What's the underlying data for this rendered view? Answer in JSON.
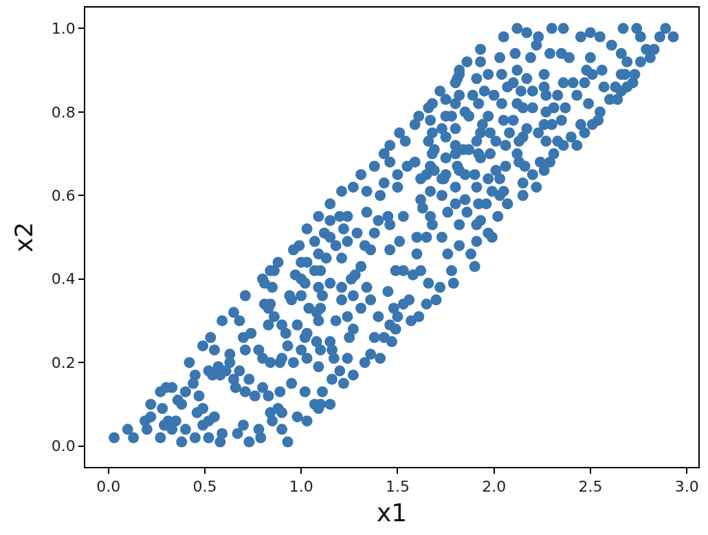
{
  "chart_data": {
    "type": "scatter",
    "xlabel": "x1",
    "ylabel": "x2",
    "color": "#3a76af",
    "marker": "circle",
    "xlim": [
      -0.12,
      3.06
    ],
    "ylim": [
      -0.05,
      1.05
    ],
    "xticks": [
      {
        "value": 0,
        "label": "0.0"
      },
      {
        "value": 0.5,
        "label": "0.5"
      },
      {
        "value": 1,
        "label": "1.0"
      },
      {
        "value": 1.5,
        "label": "1.5"
      },
      {
        "value": 2,
        "label": "2.0"
      },
      {
        "value": 2.5,
        "label": "2.5"
      },
      {
        "value": 3,
        "label": "3.0"
      }
    ],
    "yticks": [
      {
        "value": 0,
        "label": "0.0"
      },
      {
        "value": 0.2,
        "label": "0.2"
      },
      {
        "value": 0.4,
        "label": "0.4"
      },
      {
        "value": 0.6,
        "label": "0.6"
      },
      {
        "value": 0.8,
        "label": "0.8"
      },
      {
        "value": 1,
        "label": "1.0"
      }
    ],
    "x": [
      0.03,
      0.1,
      0.13,
      0.19,
      0.22,
      0.2,
      0.22,
      0.27,
      0.33,
      0.4,
      0.38,
      0.28,
      0.31,
      0.27,
      0.35,
      0.38,
      0.4,
      0.42,
      0.45,
      0.44,
      0.47,
      0.46,
      0.45,
      0.49,
      0.52,
      0.52,
      0.58,
      0.59,
      0.54,
      0.49,
      0.53,
      0.59,
      0.65,
      0.71,
      0.63,
      0.55,
      0.61,
      0.66,
      0.71,
      0.7,
      0.78,
      0.8,
      0.73,
      0.8,
      0.76,
      0.7,
      0.67,
      0.73,
      0.79,
      0.78,
      0.85,
      0.88,
      0.83,
      0.89,
      0.93,
      0.9,
      0.98,
      1.03,
      0.95,
      1.02,
      1.07,
      1.09,
      0.8,
      0.85,
      0.86,
      0.83,
      0.86,
      0.83,
      0.92,
      0.95,
      0.97,
      1.02,
      1.07,
      1.04,
      1.09,
      1.02,
      0.89,
      0.96,
      1.09,
      0.84,
      0.88,
      0.96,
      0.99,
      1.03,
      1.09,
      1.15,
      1.21,
      1.27,
      1.31,
      1.38,
      1.46,
      0.81,
      0.81,
      0.94,
      1.0,
      1.0,
      1.1,
      1.15,
      1.09,
      1.21,
      1.13,
      1.18,
      1.12,
      1.15,
      1.24,
      1.22,
      1.29,
      1.34,
      1.41,
      1.34,
      1.5,
      1.55,
      1.62,
      1.67,
      1.62,
      1.74,
      1.82,
      1.9,
      1.93,
      1.99,
      2.01,
      1.76,
      1.82,
      1.91,
      1.97,
      1.88,
      1.82,
      1.76,
      1.78,
      1.72,
      1.65,
      1.61,
      1.53,
      1.48,
      1.43,
      1.47,
      1.5,
      1.67,
      1.65,
      1.6,
      1.62,
      1.53,
      1.46,
      1.53,
      1.46,
      1.38,
      1.36,
      1.31,
      1.34,
      1.27,
      1.31,
      1.36,
      1.4,
      1.24,
      1.18,
      1.08,
      1.03,
      0.93,
      1.03,
      1.1,
      1.15,
      1.17,
      1.24,
      1.27,
      1.36,
      1.46,
      1.56,
      1.1,
      1.15,
      1.22,
      1.33,
      1.41,
      1.57,
      1.79,
      1.9,
      1.99,
      1.93,
      2.07,
      1.72,
      1.75,
      1.82,
      1.86,
      1.93,
      1.93,
      1.91,
      1.81,
      2.03,
      2.05,
      2.12,
      2.17,
      2.22,
      2.11,
      2.12,
      2.1,
      2.04,
      2.0,
      1.95,
      1.92,
      1.82,
      1.85,
      1.78,
      1.68,
      1.67,
      1.73,
      1.69,
      1.8,
      1.84,
      1.98,
      1.93,
      1.97,
      2.05,
      2.04,
      2.12,
      2.1,
      2.17,
      2.19,
      2.26,
      2.29,
      2.3,
      2.36,
      2.26,
      2.36,
      2.41,
      2.31,
      2.2,
      2.17,
      2.23,
      2.3,
      2.37,
      2.43,
      2.47,
      2.48,
      2.51,
      2.56,
      2.5,
      2.45,
      2.5,
      2.55,
      2.39,
      2.61,
      2.66,
      2.67,
      2.74,
      2.76,
      2.79,
      2.76,
      2.69,
      2.68,
      2.72,
      2.66,
      2.64,
      2.57,
      2.6,
      2.55,
      2.51,
      2.47,
      2.43,
      2.36,
      2.31,
      2.24,
      2.2,
      2.16,
      2.12,
      2.06,
      2.22,
      2.86,
      2.89,
      2.93,
      2.83,
      2.81,
      2.73,
      2.26,
      2.06,
      2.03,
      1.97,
      1.81,
      1.75,
      1.69,
      1.67,
      1.8,
      1.85,
      1.92,
      2.03,
      2.07,
      2.15,
      2.4,
      2.54,
      1.66,
      1.61,
      1.59,
      1.51,
      1.54,
      1.46,
      1.43,
      1.59,
      1.5,
      1.43,
      1.65,
      1.68,
      1.68,
      1.8,
      1.73,
      1.8,
      1.75,
      1.87,
      1.94,
      1.82,
      1.8,
      1.87,
      0.3,
      0.36,
      0.29,
      0.33,
      0.49,
      0.55,
      0.52,
      0.58,
      0.65,
      0.68,
      0.71,
      0.84,
      0.9,
      1.11,
      1.16,
      1.2,
      1.16,
      1.08,
      1.0,
      0.9,
      0.84,
      0.63,
      0.57,
      0.68,
      0.74,
      0.84,
      0.9,
      1.0,
      1.03,
      1.07,
      1.1,
      1.21,
      1.27,
      1.26,
      1.24,
      1.15,
      1.09,
      1.2,
      1.4,
      1.45,
      1.51,
      1.33,
      1.28,
      1.21,
      1.11,
      1.45,
      1.49,
      1.58,
      1.6,
      1.63,
      1.68,
      1.73,
      1.91,
      1.8,
      1.73,
      1.75,
      1.66,
      1.92,
      2.01,
      2.05,
      2.15,
      2.29,
      2.13,
      2.15,
      2.15,
      2.26,
      1.8,
      2.07,
      2.33,
      1.66,
      1.7,
      1.49,
      1.38,
      1.25,
      0.98,
      1.96,
      2.23,
      2.35,
      2.66,
      2.69,
      2.63,
      2.49,
      2.45,
      2.33,
      2.27,
      2.02,
      2.13,
      2.27,
      2.35,
      2.27,
      2.2,
      2.14,
      1.97,
      1.89,
      2.08,
      1.98,
      1.91,
      1.75,
      1.85,
      1.91,
      1.86
    ],
    "values": [
      0.02,
      0.04,
      0.02,
      0.06,
      0.07,
      0.04,
      0.1,
      0.13,
      0.14,
      0.13,
      0.1,
      0.09,
      0.06,
      0.02,
      0.06,
      0.01,
      0.04,
      0.2,
      0.17,
      0.15,
      0.12,
      0.08,
      0.02,
      0.09,
      0.06,
      0.02,
      0.01,
      0.03,
      0.17,
      0.24,
      0.26,
      0.3,
      0.32,
      0.36,
      0.22,
      0.23,
      0.18,
      0.14,
      0.23,
      0.26,
      0.23,
      0.21,
      0.16,
      0.14,
      0.12,
      0.05,
      0.03,
      0.01,
      0.02,
      0.04,
      0.06,
      0.09,
      0.12,
      0.13,
      0.01,
      0.04,
      0.07,
      0.06,
      0.15,
      0.13,
      0.1,
      0.09,
      0.4,
      0.38,
      0.42,
      0.33,
      0.31,
      0.29,
      0.27,
      0.35,
      0.41,
      0.39,
      0.42,
      0.33,
      0.3,
      0.26,
      0.2,
      0.2,
      0.19,
      0.42,
      0.44,
      0.47,
      0.48,
      0.52,
      0.55,
      0.58,
      0.61,
      0.62,
      0.65,
      0.67,
      0.68,
      0.39,
      0.34,
      0.36,
      0.44,
      0.4,
      0.42,
      0.39,
      0.38,
      0.38,
      0.45,
      0.48,
      0.51,
      0.54,
      0.55,
      0.52,
      0.51,
      0.56,
      0.6,
      0.61,
      0.62,
      0.67,
      0.64,
      0.67,
      0.59,
      0.64,
      0.66,
      0.65,
      0.69,
      0.61,
      0.66,
      0.56,
      0.53,
      0.53,
      0.51,
      0.46,
      0.48,
      0.46,
      0.42,
      0.38,
      0.34,
      0.31,
      0.34,
      0.33,
      0.26,
      0.25,
      0.31,
      0.55,
      0.5,
      0.46,
      0.42,
      0.42,
      0.47,
      0.55,
      0.53,
      0.51,
      0.47,
      0.43,
      0.38,
      0.36,
      0.33,
      0.35,
      0.31,
      0.31,
      0.3,
      0.32,
      0.27,
      0.24,
      0.21,
      0.23,
      0.25,
      0.21,
      0.21,
      0.17,
      0.22,
      0.29,
      0.35,
      0.1,
      0.1,
      0.15,
      0.2,
      0.21,
      0.3,
      0.39,
      0.43,
      0.5,
      0.54,
      0.58,
      0.85,
      0.83,
      0.9,
      0.92,
      0.95,
      0.92,
      0.88,
      0.88,
      0.93,
      0.98,
      1.0,
      0.99,
      0.96,
      0.94,
      0.9,
      0.87,
      0.89,
      0.84,
      0.85,
      0.82,
      0.84,
      0.8,
      0.79,
      0.82,
      0.78,
      0.76,
      0.71,
      0.72,
      0.71,
      0.7,
      0.75,
      0.79,
      0.78,
      0.82,
      0.82,
      0.78,
      0.88,
      0.93,
      0.89,
      0.94,
      1.0,
      1.0,
      0.86,
      0.87,
      0.87,
      0.81,
      0.81,
      0.76,
      0.75,
      0.77,
      0.81,
      0.84,
      0.87,
      0.9,
      0.89,
      0.9,
      0.93,
      0.98,
      0.99,
      0.98,
      0.93,
      0.96,
      0.94,
      1.0,
      1.0,
      0.98,
      0.95,
      0.92,
      0.92,
      0.89,
      0.87,
      0.85,
      0.83,
      0.86,
      0.83,
      0.8,
      0.77,
      0.75,
      0.72,
      0.72,
      0.7,
      0.68,
      0.65,
      0.67,
      0.7,
      0.72,
      0.62,
      0.98,
      1.0,
      0.98,
      0.95,
      0.93,
      0.89,
      0.66,
      0.67,
      0.64,
      0.64,
      0.67,
      0.65,
      0.66,
      0.61,
      0.62,
      0.59,
      0.58,
      0.6,
      0.58,
      0.6,
      0.74,
      0.78,
      0.81,
      0.79,
      0.77,
      0.75,
      0.73,
      0.72,
      0.7,
      0.68,
      0.65,
      0.63,
      0.65,
      0.75,
      0.7,
      0.7,
      0.64,
      0.76,
      0.79,
      0.79,
      0.77,
      0.89,
      0.87,
      0.71,
      0.14,
      0.11,
      0.05,
      0.04,
      0.05,
      0.07,
      0.18,
      0.17,
      0.16,
      0.18,
      0.13,
      0.08,
      0.08,
      0.13,
      0.16,
      0.18,
      0.23,
      0.25,
      0.23,
      0.21,
      0.2,
      0.2,
      0.19,
      0.3,
      0.27,
      0.34,
      0.29,
      0.36,
      0.44,
      0.49,
      0.33,
      0.35,
      0.28,
      0.4,
      0.49,
      0.5,
      0.46,
      0.55,
      0.54,
      0.55,
      0.49,
      0.48,
      0.41,
      0.45,
      0.36,
      0.37,
      0.42,
      0.41,
      0.5,
      0.57,
      0.53,
      0.5,
      0.49,
      0.58,
      0.6,
      0.69,
      0.73,
      0.7,
      0.73,
      0.61,
      0.63,
      0.68,
      0.68,
      0.74,
      0.81,
      0.77,
      0.82,
      0.86,
      0.84,
      0.39,
      0.35,
      0.28,
      0.26,
      0.26,
      0.29,
      0.58,
      0.98,
      0.94,
      0.89,
      0.86,
      0.86,
      0.82,
      0.77,
      0.73,
      0.73,
      0.55,
      0.73,
      0.8,
      0.78,
      0.84,
      0.85,
      0.85,
      0.89,
      0.84,
      0.75,
      0.75,
      0.73,
      0.74,
      0.65,
      0.62,
      0.56
    ]
  }
}
